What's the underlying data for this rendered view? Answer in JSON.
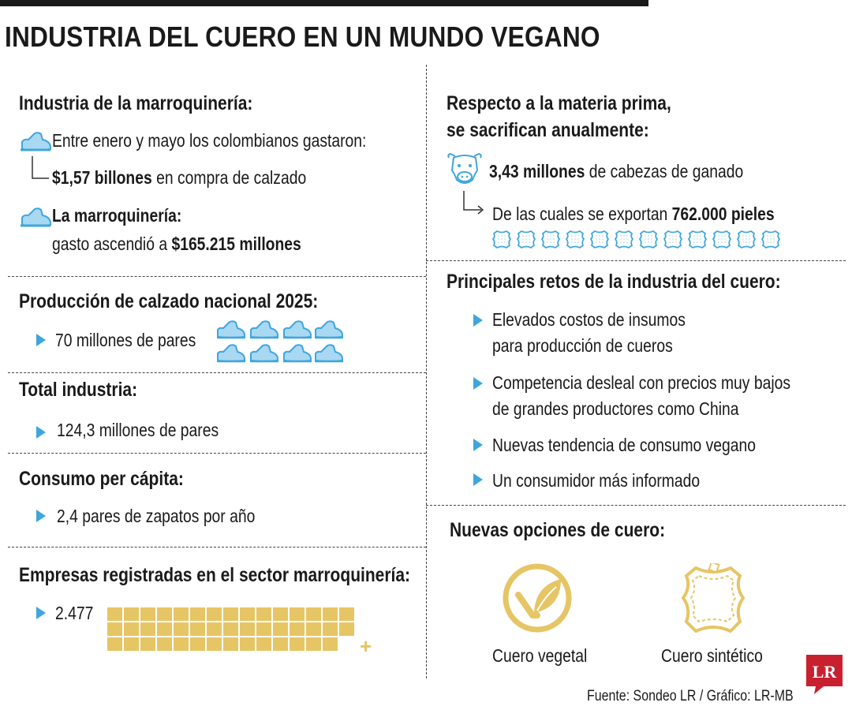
{
  "title": "INDUSTRIA DEL CUERO EN UN MUNDO VEGANO",
  "left": {
    "marroquineria": {
      "heading": "Industria de la marroquinería:",
      "line1": "Entre enero y mayo los colombianos gastaron:",
      "line2_bold": "$1,57 billones",
      "line2_rest": " en compra de calzado",
      "line3_bold": "La marroquinería:",
      "line4_prefix": "gasto ascendió a ",
      "line4_bold": "$165.215 millones"
    },
    "produccion": {
      "heading": "Producción de calzado nacional 2025:",
      "value": "70 millones de pares"
    },
    "total": {
      "heading": "Total industria:",
      "value": "124,3 millones de pares"
    },
    "consumo": {
      "heading": "Consumo per cápita:",
      "value": "2,4 pares de zapatos por año"
    },
    "empresas": {
      "heading": "Empresas registradas en el sector marroquinería:",
      "value": "2.477",
      "plus": "+"
    }
  },
  "right": {
    "materia": {
      "heading1": "Respecto a la materia prima,",
      "heading2": "se sacrifican anualmente:",
      "cattle_bold": "3,43 millones",
      "cattle_rest": " de cabezas de ganado",
      "export_prefix": "De las cuales se exportan ",
      "export_bold": "762.000 pieles"
    },
    "retos": {
      "heading": "Principales retos de la industria del cuero:",
      "items": [
        [
          "Elevados costos de insumos",
          "para producción de cueros"
        ],
        [
          "Competencia desleal con precios muy bajos",
          "de grandes productores como China"
        ],
        [
          "Nuevas tendencia de consumo vegano"
        ],
        [
          "Un consumidor más informado"
        ]
      ]
    },
    "opciones": {
      "heading": "Nuevas opciones de cuero:",
      "option1": "Cuero vegetal",
      "option2": "Cuero sintético"
    }
  },
  "source": "Fuente: Sondeo LR / Gráfico: LR-MB",
  "logo_text": "LR",
  "colors": {
    "accent_blue": "#3fa6dc",
    "light_blue": "#a9d8f2",
    "gold": "#e6c565",
    "logo_red": "#c8202f"
  }
}
